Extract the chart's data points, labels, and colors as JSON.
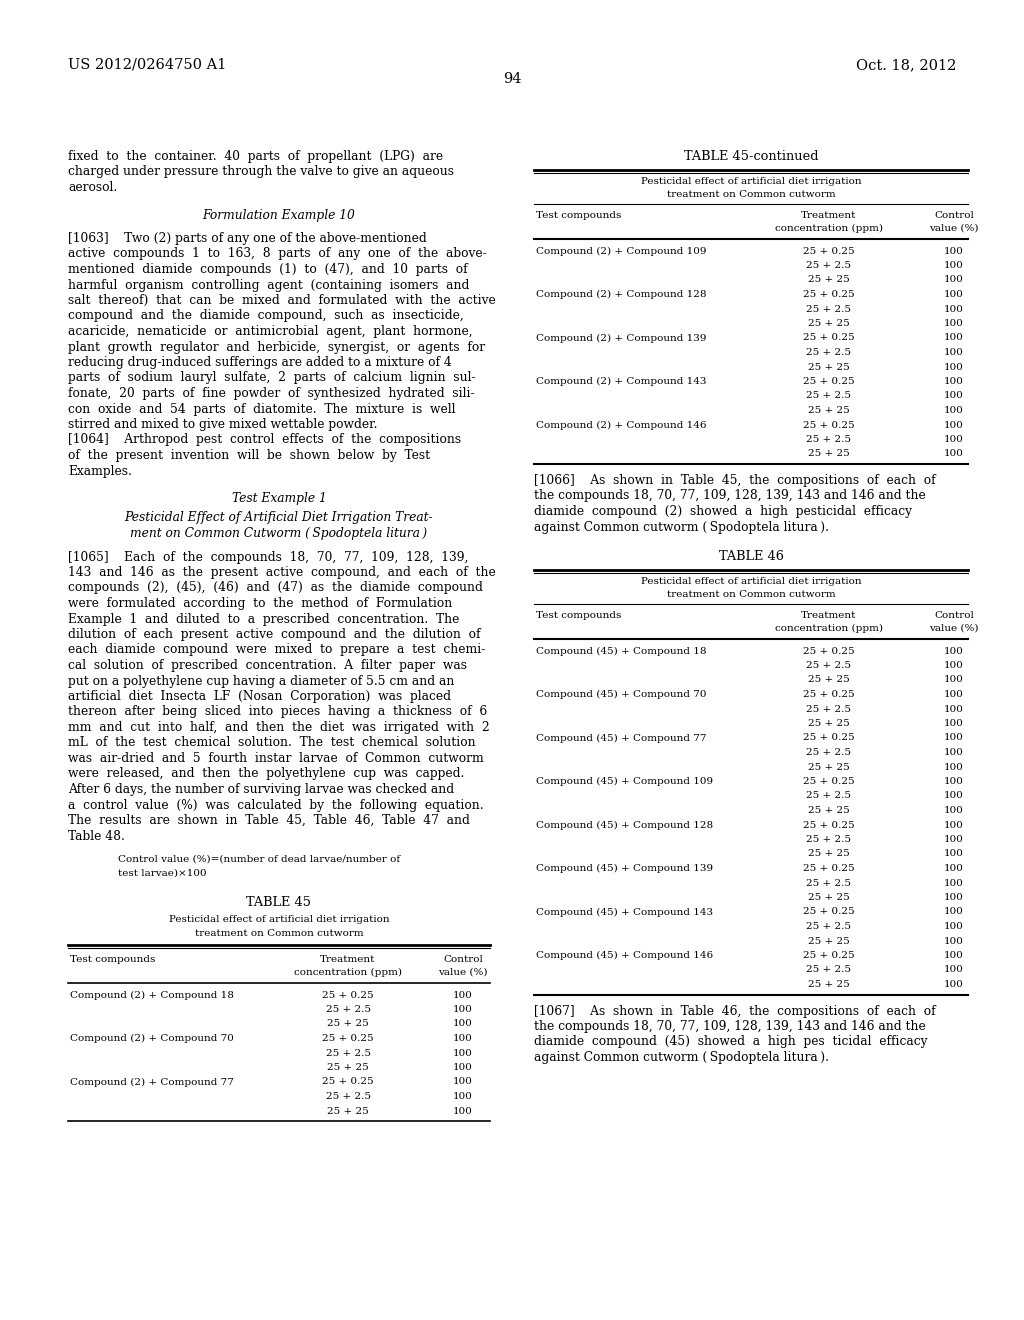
{
  "page_header_left": "US 2012/0264750 A1",
  "page_header_right": "Oct. 18, 2012",
  "page_number": "94",
  "background_color": "#ffffff",
  "rows45": [
    [
      "Compound (2) + Compound 18",
      "25 + 0.25",
      "100"
    ],
    [
      "",
      "25 + 2.5",
      "100"
    ],
    [
      "",
      "25 + 25",
      "100"
    ],
    [
      "Compound (2) + Compound 70",
      "25 + 0.25",
      "100"
    ],
    [
      "",
      "25 + 2.5",
      "100"
    ],
    [
      "",
      "25 + 25",
      "100"
    ],
    [
      "Compound (2) + Compound 77",
      "25 + 0.25",
      "100"
    ],
    [
      "",
      "25 + 2.5",
      "100"
    ],
    [
      "",
      "25 + 25",
      "100"
    ]
  ],
  "rows45c": [
    [
      "Compound (2) + Compound 109",
      "25 + 0.25",
      "100"
    ],
    [
      "",
      "25 + 2.5",
      "100"
    ],
    [
      "",
      "25 + 25",
      "100"
    ],
    [
      "Compound (2) + Compound 128",
      "25 + 0.25",
      "100"
    ],
    [
      "",
      "25 + 2.5",
      "100"
    ],
    [
      "",
      "25 + 25",
      "100"
    ],
    [
      "Compound (2) + Compound 139",
      "25 + 0.25",
      "100"
    ],
    [
      "",
      "25 + 2.5",
      "100"
    ],
    [
      "",
      "25 + 25",
      "100"
    ],
    [
      "Compound (2) + Compound 143",
      "25 + 0.25",
      "100"
    ],
    [
      "",
      "25 + 2.5",
      "100"
    ],
    [
      "",
      "25 + 25",
      "100"
    ],
    [
      "Compound (2) + Compound 146",
      "25 + 0.25",
      "100"
    ],
    [
      "",
      "25 + 2.5",
      "100"
    ],
    [
      "",
      "25 + 25",
      "100"
    ]
  ],
  "rows46": [
    [
      "Compound (45) + Compound 18",
      "25 + 0.25",
      "100"
    ],
    [
      "",
      "25 + 2.5",
      "100"
    ],
    [
      "",
      "25 + 25",
      "100"
    ],
    [
      "Compound (45) + Compound 70",
      "25 + 0.25",
      "100"
    ],
    [
      "",
      "25 + 2.5",
      "100"
    ],
    [
      "",
      "25 + 25",
      "100"
    ],
    [
      "Compound (45) + Compound 77",
      "25 + 0.25",
      "100"
    ],
    [
      "",
      "25 + 2.5",
      "100"
    ],
    [
      "",
      "25 + 25",
      "100"
    ],
    [
      "Compound (45) + Compound 109",
      "25 + 0.25",
      "100"
    ],
    [
      "",
      "25 + 2.5",
      "100"
    ],
    [
      "",
      "25 + 25",
      "100"
    ],
    [
      "Compound (45) + Compound 128",
      "25 + 0.25",
      "100"
    ],
    [
      "",
      "25 + 2.5",
      "100"
    ],
    [
      "",
      "25 + 25",
      "100"
    ],
    [
      "Compound (45) + Compound 139",
      "25 + 0.25",
      "100"
    ],
    [
      "",
      "25 + 2.5",
      "100"
    ],
    [
      "",
      "25 + 25",
      "100"
    ],
    [
      "Compound (45) + Compound 143",
      "25 + 0.25",
      "100"
    ],
    [
      "",
      "25 + 2.5",
      "100"
    ],
    [
      "",
      "25 + 25",
      "100"
    ],
    [
      "Compound (45) + Compound 146",
      "25 + 0.25",
      "100"
    ],
    [
      "",
      "25 + 2.5",
      "100"
    ],
    [
      "",
      "25 + 25",
      "100"
    ]
  ]
}
